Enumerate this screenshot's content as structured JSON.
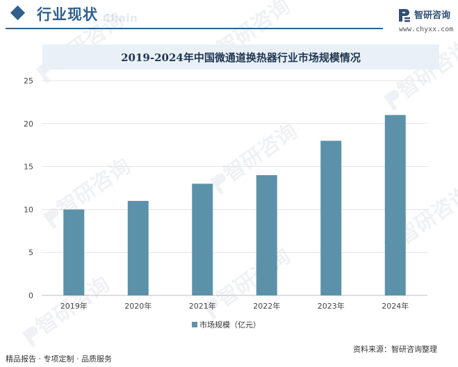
{
  "header": {
    "section_title": "行业现状",
    "section_subtitle": "Chain",
    "brand_name": "智研咨询",
    "brand_url": "www.chyxx.com"
  },
  "colors": {
    "accent": "#2f5f8a",
    "bar": "#5b92a9",
    "title_band": "#e9f1f7"
  },
  "chart_data": {
    "type": "bar",
    "title": "2019-2024年中国微通道换热器行业市场规模情况",
    "categories": [
      "2019年",
      "2020年",
      "2021年",
      "2022年",
      "2023年",
      "2024年"
    ],
    "series": [
      {
        "name": "市场规模（亿元）",
        "values": [
          10,
          11,
          13,
          14,
          18,
          21
        ]
      }
    ],
    "y_ticks": [
      "0",
      "5",
      "10",
      "15",
      "20",
      "25"
    ],
    "ylim": [
      0,
      25
    ],
    "grid": true,
    "legend": "bottom-center"
  },
  "footer": {
    "tagline": "精品报告 · 专项定制 · 品质服务",
    "source": "资料来源：智研咨询整理"
  },
  "watermark": {
    "text": "智研咨询",
    "icon": "chyxx-logo-icon"
  }
}
